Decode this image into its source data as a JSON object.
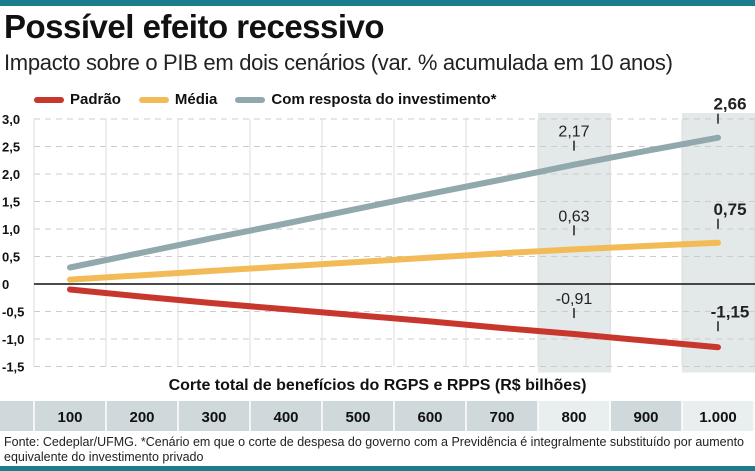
{
  "title": "Possível efeito recessivo",
  "subtitle": "Impacto sobre o PIB em dois cenários (var. % acumulada em 10 anos)",
  "source": "Fonte: Cedeplar/UFMG. *Cenário em que o corte de despesa do governo com a Previdência é integralmente substituído por aumento equivalente do investimento privado",
  "chart_data": {
    "type": "line",
    "title": "Possível efeito recessivo",
    "xlabel": "Corte total de benefícios do RGPS e RPPS (R$ bilhões)",
    "ylabel": "",
    "categories": [
      "100",
      "200",
      "300",
      "400",
      "500",
      "600",
      "700",
      "800",
      "900",
      "1.000"
    ],
    "yticks": [
      "3,0",
      "2,5",
      "2,0",
      "1,5",
      "1,0",
      "0,5",
      "0",
      "-0,5",
      "-1,0",
      "-1,5"
    ],
    "ylim": [
      -1.5,
      3.0
    ],
    "grid": true,
    "legend": "top-left",
    "highlighted_categories": [
      "800",
      "1.000"
    ],
    "series": [
      {
        "name": "Padrão",
        "color": "#c8372d",
        "values": [
          -0.1,
          -0.23,
          -0.35,
          -0.46,
          -0.57,
          -0.68,
          -0.8,
          -0.91,
          -1.03,
          -1.15
        ],
        "labels": {
          "800": "-0,91",
          "1.000": "-1,15"
        }
      },
      {
        "name": "Média",
        "color": "#f3bb57",
        "values": [
          0.08,
          0.16,
          0.24,
          0.32,
          0.4,
          0.48,
          0.56,
          0.63,
          0.69,
          0.75
        ],
        "labels": {
          "800": "0,63",
          "1.000": "0,75"
        }
      },
      {
        "name": "Com resposta do investimento*",
        "color": "#91a8ad",
        "values": [
          0.3,
          0.57,
          0.84,
          1.1,
          1.37,
          1.64,
          1.9,
          2.17,
          2.42,
          2.66
        ],
        "labels": {
          "800": "2,17",
          "1.000": "2,66"
        }
      }
    ]
  }
}
